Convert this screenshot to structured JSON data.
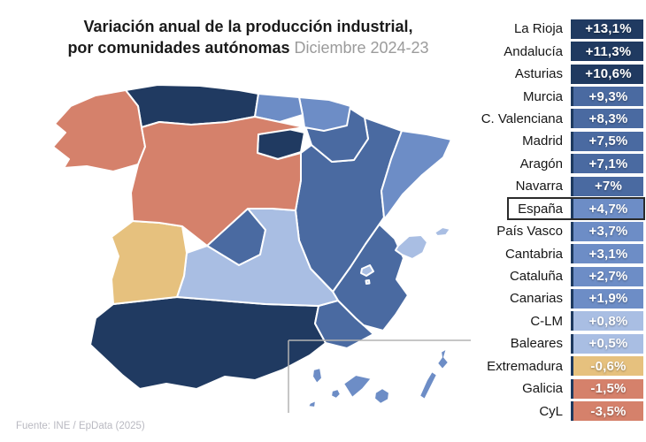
{
  "title": {
    "line1": "Variación anual de la producción industrial,",
    "line2_bold": "por comunidades autónomas",
    "period": " Diciembre 2024-23"
  },
  "source": "Fuente: INE / EpData (2025)",
  "chart_data": {
    "type": "heatmap",
    "subtype": "choropleth-map-of-spain-with-ranked-list",
    "title": "Variación anual de la producción industrial, por comunidades autónomas",
    "subtitle": "Diciembre 2024-23",
    "unit": "%",
    "number_format": "es-ES decimal comma, sign prefixed",
    "legend_position": "ranked list on right, colors encode value buckets",
    "color_scale": {
      "very_high_positive": "#203a61",
      "high_positive": "#4a6aa1",
      "mid_positive": "#6d8dc6",
      "low_positive": "#a9bee3",
      "low_negative": "#e6c17e",
      "negative": "#d5816b"
    },
    "regions": [
      {
        "id": "larioja",
        "name": "La Rioja",
        "label": "+13,1%",
        "value": 13.1,
        "color": "#203a61",
        "highlight": false
      },
      {
        "id": "andalucia",
        "name": "Andalucía",
        "label": "+11,3%",
        "value": 11.3,
        "color": "#203a61",
        "highlight": false
      },
      {
        "id": "asturias",
        "name": "Asturias",
        "label": "+10,6%",
        "value": 10.6,
        "color": "#203a61",
        "highlight": false
      },
      {
        "id": "murcia",
        "name": "Murcia",
        "label": "+9,3%",
        "value": 9.3,
        "color": "#4a6aa1",
        "highlight": false
      },
      {
        "id": "valenciana",
        "name": "C. Valenciana",
        "label": "+8,3%",
        "value": 8.3,
        "color": "#4a6aa1",
        "highlight": false
      },
      {
        "id": "madrid",
        "name": "Madrid",
        "label": "+7,5%",
        "value": 7.5,
        "color": "#4a6aa1",
        "highlight": false
      },
      {
        "id": "aragon",
        "name": "Aragón",
        "label": "+7,1%",
        "value": 7.1,
        "color": "#4a6aa1",
        "highlight": false
      },
      {
        "id": "navarra",
        "name": "Navarra",
        "label": "+7%",
        "value": 7.0,
        "color": "#4a6aa1",
        "highlight": false
      },
      {
        "id": "espana",
        "name": "España",
        "label": "+4,7%",
        "value": 4.7,
        "color": "#6d8dc6",
        "highlight": true
      },
      {
        "id": "paisvasco",
        "name": "País Vasco",
        "label": "+3,7%",
        "value": 3.7,
        "color": "#6d8dc6",
        "highlight": false
      },
      {
        "id": "cantabria",
        "name": "Cantabria",
        "label": "+3,1%",
        "value": 3.1,
        "color": "#6d8dc6",
        "highlight": false
      },
      {
        "id": "cataluna",
        "name": "Cataluña",
        "label": "+2,7%",
        "value": 2.7,
        "color": "#6d8dc6",
        "highlight": false
      },
      {
        "id": "canarias",
        "name": "Canarias",
        "label": "+1,9%",
        "value": 1.9,
        "color": "#6d8dc6",
        "highlight": false
      },
      {
        "id": "clm",
        "name": "C-LM",
        "label": "+0,8%",
        "value": 0.8,
        "color": "#a9bee3",
        "highlight": false
      },
      {
        "id": "baleares",
        "name": "Baleares",
        "label": "+0,5%",
        "value": 0.5,
        "color": "#a9bee3",
        "highlight": false
      },
      {
        "id": "extremadura",
        "name": "Extremadura",
        "label": "-0,6%",
        "value": -0.6,
        "color": "#e6c17e",
        "highlight": false
      },
      {
        "id": "galicia",
        "name": "Galicia",
        "label": "-1,5%",
        "value": -1.5,
        "color": "#d5816b",
        "highlight": false
      },
      {
        "id": "cyl",
        "name": "CyL",
        "label": "-3,5%",
        "value": -3.5,
        "color": "#d5816b",
        "highlight": false
      }
    ]
  }
}
